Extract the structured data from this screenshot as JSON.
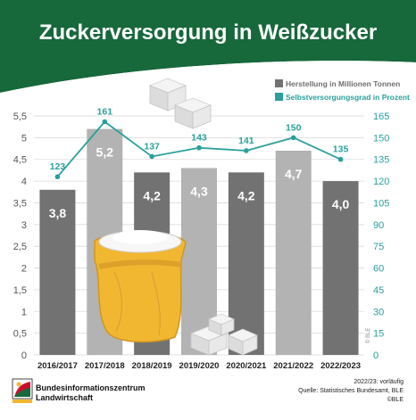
{
  "header": {
    "title": "Zuckerversorgung in Weißzucker"
  },
  "colors": {
    "header_green": "#17683b",
    "bar_dark": "#727272",
    "bar_light": "#b3b3b3",
    "line_teal": "#2aa09b",
    "axis_text": "#555555",
    "bag_yellow": "#f2b731"
  },
  "chart_data": {
    "type": "bar",
    "categories": [
      "2016/2017",
      "2017/2018",
      "2018/2019",
      "2019/2020",
      "2020/2021",
      "2021/2022",
      "2022/2023"
    ],
    "series": [
      {
        "name": "Herstellung in Millionen Tonnen",
        "type": "bar",
        "axis": "left",
        "values": [
          3.8,
          5.2,
          4.2,
          4.3,
          4.2,
          4.7,
          4.0
        ],
        "labels": [
          "3,8",
          "5,2",
          "4,2",
          "4,3",
          "4,2",
          "4,7",
          "4,0"
        ]
      },
      {
        "name": "Selbstversorgungsgrad in Prozent",
        "type": "line",
        "axis": "right",
        "values": [
          123,
          161,
          137,
          143,
          141,
          150,
          135
        ],
        "labels": [
          "123",
          "161",
          "137",
          "143",
          "141",
          "150",
          "135"
        ]
      }
    ],
    "y_left": {
      "range": [
        0,
        5.5
      ],
      "ticks": [
        0,
        0.5,
        1,
        1.5,
        2,
        2.5,
        3,
        3.5,
        4,
        4.5,
        5,
        5.5
      ],
      "tick_labels": [
        "0",
        "0,5",
        "1",
        "1,5",
        "2",
        "2,5",
        "3",
        "3,5",
        "4",
        "4,5",
        "5",
        "5,5"
      ]
    },
    "y_right": {
      "range": [
        0,
        165
      ],
      "ticks": [
        0,
        15,
        30,
        45,
        60,
        75,
        90,
        105,
        120,
        135,
        150,
        165
      ],
      "tick_labels": [
        "0",
        "15",
        "30",
        "45",
        "60",
        "75",
        "90",
        "105",
        "120",
        "135",
        "150",
        "165"
      ]
    },
    "grid": true,
    "legend_position": "top-right"
  },
  "watermark": "© BLE",
  "footer": {
    "org_line1": "Bundesinformationszentrum",
    "org_line2": "Landwirtschaft",
    "note": "2022/23: vorläufig",
    "source": "Quelle: Statistisches Bundesamt, BLE",
    "copyright": "©BLE"
  }
}
